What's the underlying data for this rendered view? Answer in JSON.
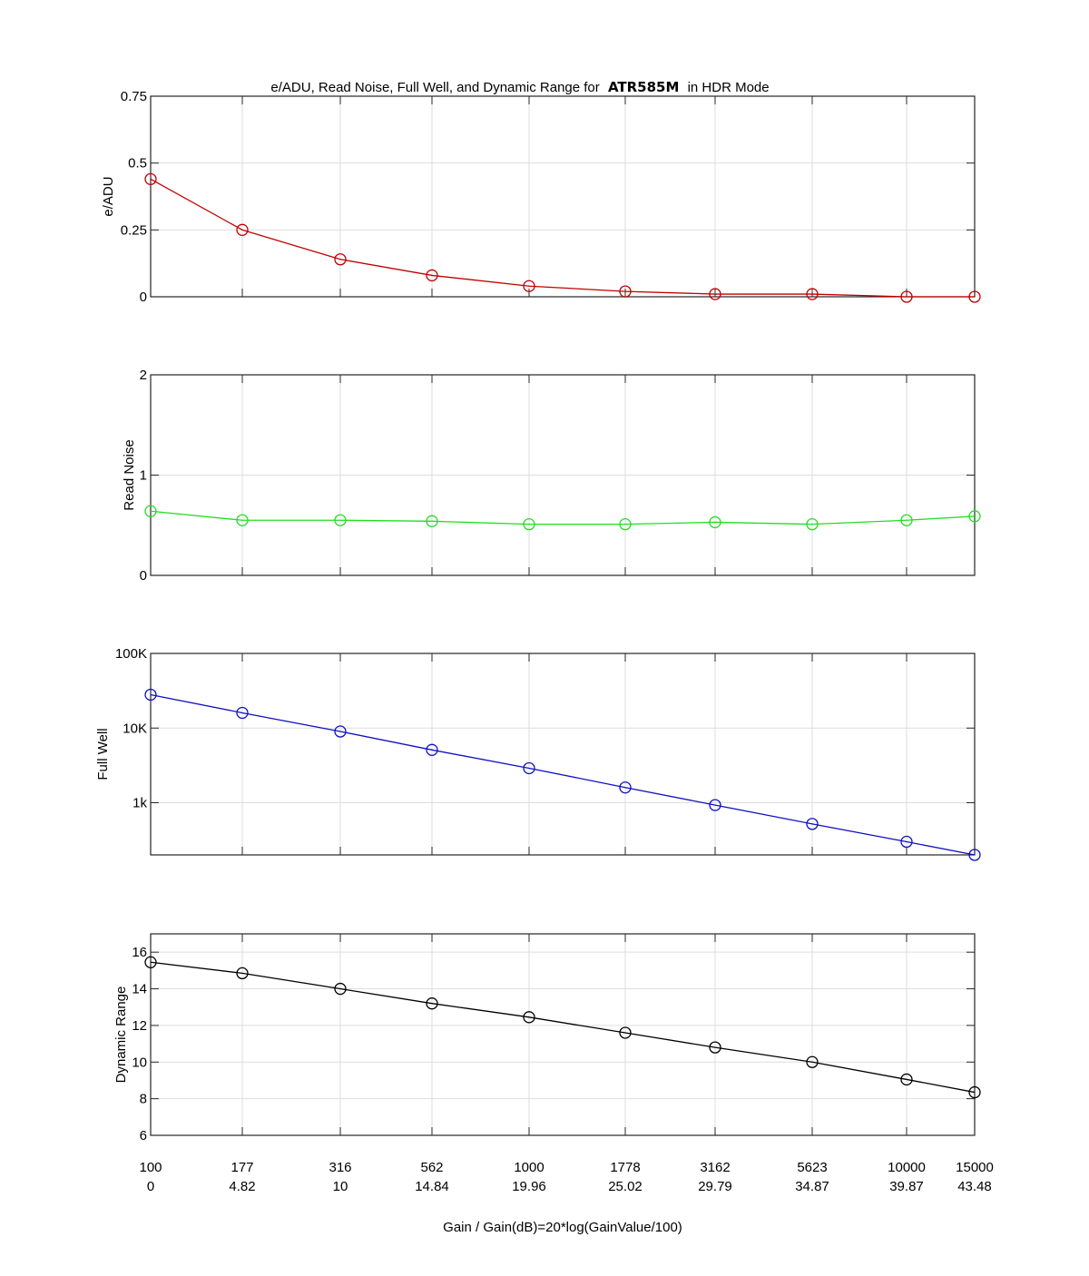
{
  "title": {
    "prefix": "e/ADU, Read Noise, Full Well, and Dynamic Range for",
    "model": "ATR585M",
    "suffix": "in HDR Mode"
  },
  "x_axis": {
    "label": "Gain / Gain(dB)=20*log(GainValue/100)",
    "gain_labels": [
      "100",
      "177",
      "316",
      "562",
      "1000",
      "1778",
      "3162",
      "5623",
      "10000",
      "15000"
    ],
    "db_labels": [
      "0",
      "4.82",
      "10",
      "14.84",
      "19.96",
      "25.02",
      "29.79",
      "34.87",
      "39.87",
      "43.48"
    ]
  },
  "chart_data": [
    {
      "type": "line",
      "id": "eadu",
      "title": "e/ADU, Read Noise, Full Well, and Dynamic Range for ATR585M in HDR Mode",
      "ylabel": "e/ADU",
      "yscale": "linear",
      "ylim": [
        0,
        0.75
      ],
      "yticks": [
        0,
        0.25,
        0.5,
        0.75
      ],
      "ytick_labels": [
        "0",
        "0.25",
        "0.5",
        "0.75"
      ],
      "grid": true,
      "color": "#c00000",
      "marker": "circle",
      "x": [
        100,
        177,
        316,
        562,
        1000,
        1778,
        3162,
        5623,
        10000,
        15000
      ],
      "values": [
        0.44,
        0.25,
        0.14,
        0.08,
        0.04,
        0.02,
        0.01,
        0.01,
        0.0,
        0.0
      ]
    },
    {
      "type": "line",
      "id": "readnoise",
      "ylabel": "Read Noise",
      "yscale": "linear",
      "ylim": [
        0,
        2
      ],
      "yticks": [
        0,
        1,
        2
      ],
      "ytick_labels": [
        "0",
        "1",
        "2"
      ],
      "grid": true,
      "color": "#22dd22",
      "marker": "circle",
      "x": [
        100,
        177,
        316,
        562,
        1000,
        1778,
        3162,
        5623,
        10000,
        15000
      ],
      "values": [
        0.64,
        0.55,
        0.55,
        0.54,
        0.51,
        0.51,
        0.53,
        0.51,
        0.55,
        0.59
      ]
    },
    {
      "type": "line",
      "id": "fullwell",
      "ylabel": "Full Well",
      "yscale": "log",
      "ylim": [
        200,
        100000
      ],
      "yticks": [
        1000,
        10000,
        100000
      ],
      "ytick_labels": [
        "1k",
        "10K",
        "100K"
      ],
      "grid": true,
      "color": "#1010c0",
      "marker": "circle",
      "x": [
        100,
        177,
        316,
        562,
        1000,
        1778,
        3162,
        5623,
        10000,
        15000
      ],
      "values": [
        28000,
        16000,
        9000,
        5100,
        2900,
        1600,
        930,
        520,
        300,
        200
      ]
    },
    {
      "type": "line",
      "id": "dynamicrange",
      "ylabel": "Dynamic Range",
      "yscale": "linear",
      "ylim": [
        6,
        17
      ],
      "yticks": [
        6,
        8,
        10,
        12,
        14,
        16
      ],
      "ytick_labels": [
        "6",
        "8",
        "10",
        "12",
        "14",
        "16"
      ],
      "grid": true,
      "color": "#000000",
      "marker": "circle",
      "x": [
        100,
        177,
        316,
        562,
        1000,
        1778,
        3162,
        5623,
        10000,
        15000
      ],
      "values": [
        15.45,
        14.85,
        14.0,
        13.2,
        12.45,
        11.6,
        10.8,
        10.0,
        9.05,
        8.35
      ]
    }
  ]
}
